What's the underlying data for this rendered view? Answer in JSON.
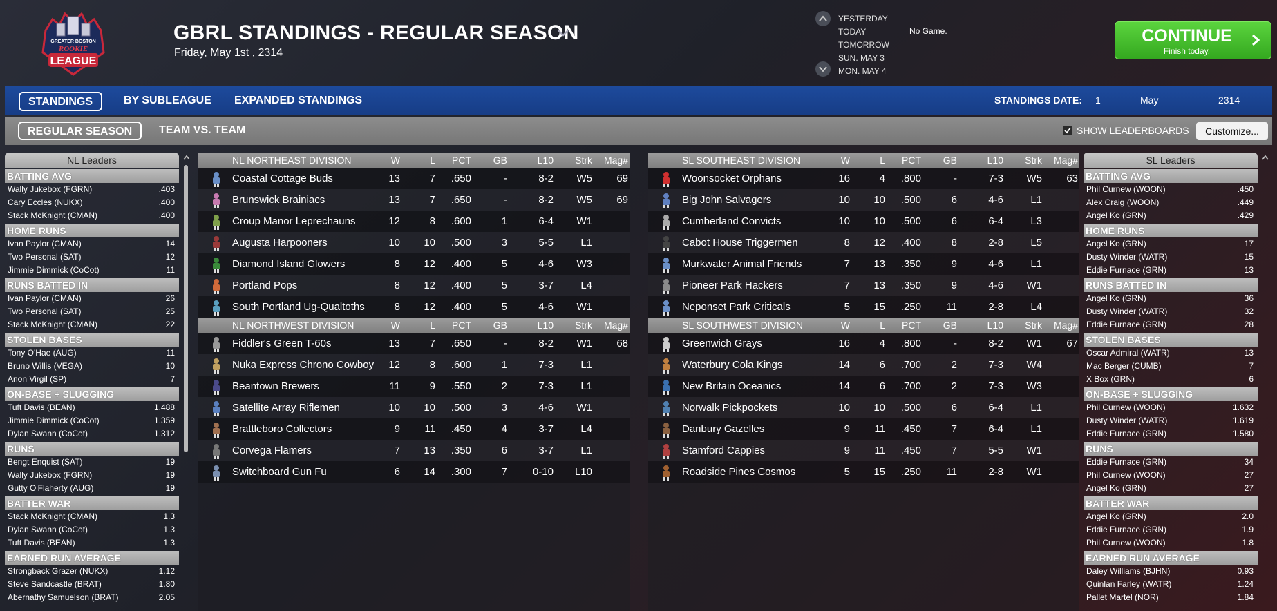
{
  "header": {
    "title": "GBRL STANDINGS - REGULAR SEASON",
    "date": "Friday, May 1st , 2314",
    "logo_lines": [
      "GREATER BOSTON",
      "ROOKIE",
      "LEAGUE"
    ],
    "days": [
      "YESTERDAY",
      "TODAY",
      "TOMORROW",
      "SUN. MAY 3",
      "MON. MAY 4"
    ],
    "no_game": "No Game.",
    "continue_label": "CONTINUE",
    "continue_sub": "Finish today."
  },
  "tabs_main": [
    "STANDINGS",
    "BY SUBLEAGUE",
    "EXPANDED STANDINGS"
  ],
  "standings_date": {
    "label": "STANDINGS DATE:",
    "day": "1",
    "month": "May",
    "year": "2314"
  },
  "tabs_sub": [
    "REGULAR SEASON",
    "TEAM VS. TEAM"
  ],
  "show_leaderboards": "SHOW LEADERBOARDS",
  "customize_label": "Customize...",
  "columns": [
    "W",
    "L",
    "PCT",
    "GB",
    "L10",
    "Strk",
    "Mag#"
  ],
  "nl_leaders": {
    "title": "NL Leaders",
    "categories": [
      {
        "name": "BATTING AVG",
        "rows": [
          [
            "Wally Jukebox (FGRN)",
            ".403"
          ],
          [
            "Cary Eccles (NUKX)",
            ".400"
          ],
          [
            "Stack McKnight (CMAN)",
            ".400"
          ]
        ]
      },
      {
        "name": "HOME RUNS",
        "rows": [
          [
            "Ivan Paylor (CMAN)",
            "14"
          ],
          [
            "Two Personal (SAT)",
            "12"
          ],
          [
            "Jimmie Dimmick (CoCot)",
            "11"
          ]
        ]
      },
      {
        "name": "RUNS BATTED IN",
        "rows": [
          [
            "Ivan Paylor (CMAN)",
            "26"
          ],
          [
            "Two Personal (SAT)",
            "25"
          ],
          [
            "Stack McKnight (CMAN)",
            "22"
          ]
        ]
      },
      {
        "name": "STOLEN BASES",
        "rows": [
          [
            "Tony O'Hae (AUG)",
            "11"
          ],
          [
            "Bruno Willis (VEGA)",
            "10"
          ],
          [
            "Anon Virgil (SP)",
            "7"
          ]
        ]
      },
      {
        "name": "ON-BASE + SLUGGING",
        "rows": [
          [
            "Tuft Davis (BEAN)",
            "1.488"
          ],
          [
            "Jimmie Dimmick (CoCot)",
            "1.359"
          ],
          [
            "Dylan Swann (CoCot)",
            "1.312"
          ]
        ]
      },
      {
        "name": "RUNS",
        "rows": [
          [
            "Bengt Enquist (SAT)",
            "19"
          ],
          [
            "Wally Jukebox (FGRN)",
            "19"
          ],
          [
            "Gutty O'Flaherty (AUG)",
            "19"
          ]
        ]
      },
      {
        "name": "BATTER WAR",
        "rows": [
          [
            "Stack McKnight (CMAN)",
            "1.3"
          ],
          [
            "Dylan Swann (CoCot)",
            "1.3"
          ],
          [
            "Tuft Davis (BEAN)",
            "1.3"
          ]
        ]
      },
      {
        "name": "EARNED RUN AVERAGE",
        "rows": [
          [
            "Strongback Grazer (NUKX)",
            "1.12"
          ],
          [
            "Steve Sandcastle (BRAT)",
            "1.80"
          ],
          [
            "Abernathy Samuelson (BRAT)",
            "2.05"
          ]
        ]
      }
    ]
  },
  "sl_leaders": {
    "title": "SL Leaders",
    "categories": [
      {
        "name": "BATTING AVG",
        "rows": [
          [
            "Phil Curnew (WOON)",
            ".450"
          ],
          [
            "Alex Craig (WOON)",
            ".449"
          ],
          [
            "Angel Ko (GRN)",
            ".429"
          ]
        ]
      },
      {
        "name": "HOME RUNS",
        "rows": [
          [
            "Angel Ko (GRN)",
            "17"
          ],
          [
            "Dusty Winder (WATR)",
            "15"
          ],
          [
            "Eddie Furnace (GRN)",
            "13"
          ]
        ]
      },
      {
        "name": "RUNS BATTED IN",
        "rows": [
          [
            "Angel Ko (GRN)",
            "36"
          ],
          [
            "Dusty Winder (WATR)",
            "32"
          ],
          [
            "Eddie Furnace (GRN)",
            "28"
          ]
        ]
      },
      {
        "name": "STOLEN BASES",
        "rows": [
          [
            "Oscar Admiral (WATR)",
            "13"
          ],
          [
            "Mac Berger (CUMB)",
            "7"
          ],
          [
            "X Box (GRN)",
            "6"
          ]
        ]
      },
      {
        "name": "ON-BASE + SLUGGING",
        "rows": [
          [
            "Phil Curnew (WOON)",
            "1.632"
          ],
          [
            "Dusty Winder (WATR)",
            "1.619"
          ],
          [
            "Eddie Furnace (GRN)",
            "1.580"
          ]
        ]
      },
      {
        "name": "RUNS",
        "rows": [
          [
            "Eddie Furnace (GRN)",
            "34"
          ],
          [
            "Phil Curnew (WOON)",
            "27"
          ],
          [
            "Angel Ko (GRN)",
            "27"
          ]
        ]
      },
      {
        "name": "BATTER WAR",
        "rows": [
          [
            "Angel Ko (GRN)",
            "2.0"
          ],
          [
            "Eddie Furnace (GRN)",
            "1.9"
          ],
          [
            "Phil Curnew (WOON)",
            "1.8"
          ]
        ]
      },
      {
        "name": "EARNED RUN AVERAGE",
        "rows": [
          [
            "Daley Williams (BJHN)",
            "0.93"
          ],
          [
            "Quinlan Farley (WATR)",
            "1.24"
          ],
          [
            "Pallet Martel (NOR)",
            "1.84"
          ]
        ]
      }
    ]
  },
  "nl_divisions": [
    {
      "name": "NL NORTHEAST DIVISION",
      "teams": [
        [
          "Coastal Cottage Buds",
          "13",
          "7",
          ".650",
          "-",
          "8-2",
          "W5",
          "69"
        ],
        [
          "Brunswick Brainiacs",
          "13",
          "7",
          ".650",
          "-",
          "8-2",
          "W5",
          "69"
        ],
        [
          "Croup Manor Leprechauns",
          "12",
          "8",
          ".600",
          "1",
          "6-4",
          "W1",
          ""
        ],
        [
          "Augusta Harpooners",
          "10",
          "10",
          ".500",
          "3",
          "5-5",
          "L1",
          ""
        ],
        [
          "Diamond Island Glowers",
          "8",
          "12",
          ".400",
          "5",
          "4-6",
          "W3",
          ""
        ],
        [
          "Portland Pops",
          "8",
          "12",
          ".400",
          "5",
          "3-7",
          "L4",
          ""
        ],
        [
          "South Portland Ug-Qualtoths",
          "8",
          "12",
          ".400",
          "5",
          "4-6",
          "W1",
          ""
        ]
      ]
    },
    {
      "name": "NL NORTHWEST DIVISION",
      "teams": [
        [
          "Fiddler's Green T-60s",
          "13",
          "7",
          ".650",
          "-",
          "8-2",
          "W1",
          "68"
        ],
        [
          "Nuka Express Chrono Cowboy",
          "12",
          "8",
          ".600",
          "1",
          "7-3",
          "L1",
          ""
        ],
        [
          "Beantown Brewers",
          "11",
          "9",
          ".550",
          "2",
          "7-3",
          "L1",
          ""
        ],
        [
          "Satellite Array Riflemen",
          "10",
          "10",
          ".500",
          "3",
          "4-6",
          "W1",
          ""
        ],
        [
          "Brattleboro Collectors",
          "9",
          "11",
          ".450",
          "4",
          "3-7",
          "L4",
          ""
        ],
        [
          "Corvega Flamers",
          "7",
          "13",
          ".350",
          "6",
          "3-7",
          "L1",
          ""
        ],
        [
          "Switchboard Gun Fu",
          "6",
          "14",
          ".300",
          "7",
          "0-10",
          "L10",
          ""
        ]
      ]
    }
  ],
  "sl_divisions": [
    {
      "name": "SL SOUTHEAST DIVISION",
      "teams": [
        [
          "Woonsocket Orphans",
          "16",
          "4",
          ".800",
          "-",
          "7-3",
          "W5",
          "63"
        ],
        [
          "Big John Salvagers",
          "10",
          "10",
          ".500",
          "6",
          "4-6",
          "L1",
          ""
        ],
        [
          "Cumberland Convicts",
          "10",
          "10",
          ".500",
          "6",
          "6-4",
          "L3",
          ""
        ],
        [
          "Cabot House Triggermen",
          "8",
          "12",
          ".400",
          "8",
          "2-8",
          "L5",
          ""
        ],
        [
          "Murkwater Animal Friends",
          "7",
          "13",
          ".350",
          "9",
          "4-6",
          "L1",
          ""
        ],
        [
          "Pioneer Park Hackers",
          "7",
          "13",
          ".350",
          "9",
          "4-6",
          "W1",
          ""
        ],
        [
          "Neponset Park Criticals",
          "5",
          "15",
          ".250",
          "11",
          "2-8",
          "L4",
          ""
        ]
      ]
    },
    {
      "name": "SL SOUTHWEST DIVISION",
      "teams": [
        [
          "Greenwich Grays",
          "16",
          "4",
          ".800",
          "-",
          "8-2",
          "W1",
          "67"
        ],
        [
          "Waterbury Cola Kings",
          "14",
          "6",
          ".700",
          "2",
          "7-3",
          "W4",
          ""
        ],
        [
          "New Britain Oceanics",
          "14",
          "6",
          ".700",
          "2",
          "7-3",
          "W3",
          ""
        ],
        [
          "Norwalk Pickpockets",
          "10",
          "10",
          ".500",
          "6",
          "6-4",
          "L1",
          ""
        ],
        [
          "Danbury Gazelles",
          "9",
          "11",
          ".450",
          "7",
          "6-4",
          "L1",
          ""
        ],
        [
          "Stamford Cappies",
          "9",
          "11",
          ".450",
          "7",
          "5-5",
          "W1",
          ""
        ],
        [
          "Roadside Pines Cosmos",
          "5",
          "15",
          ".250",
          "11",
          "2-8",
          "W1",
          ""
        ]
      ]
    }
  ],
  "team_icon_colors": [
    "#6a8fc7",
    "#c77ab0",
    "#7fa04a",
    "#9a3a3a",
    "#3a8a3a",
    "#d06a3a",
    "#5aa0c0",
    "#999999",
    "#c0a060",
    "#4a4a8a",
    "#5a80c0",
    "#a07050",
    "#777777",
    "#7a8fb0",
    "#d03030",
    "#6080c0",
    "#aaaaaa",
    "#444444",
    "#6a8fc7",
    "#8a8a8a",
    "#6a8fc7",
    "#cccccc",
    "#c08040",
    "#3a70b0",
    "#5080b0",
    "#8a6040",
    "#b04040",
    "#a06030"
  ]
}
